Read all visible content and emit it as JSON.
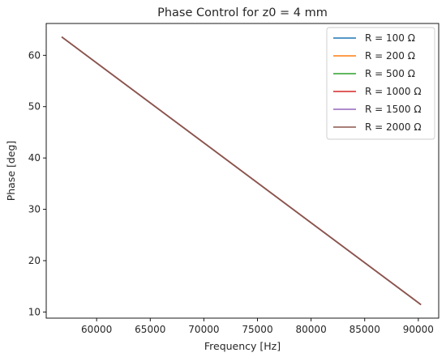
{
  "chart_data": {
    "type": "line",
    "title": "Phase Control for z0 = 4 mm",
    "xlabel": "Frequency [Hz]",
    "ylabel": "Phase [deg]",
    "xlim": [
      55300,
      91900
    ],
    "ylim": [
      8.8,
      66.2
    ],
    "xticks": [
      60000,
      65000,
      70000,
      75000,
      80000,
      85000,
      90000
    ],
    "xtick_labels": [
      "60000",
      "65000",
      "70000",
      "75000",
      "80000",
      "85000",
      "90000"
    ],
    "yticks": [
      10,
      20,
      30,
      40,
      50,
      60
    ],
    "ytick_labels": [
      "10",
      "20",
      "30",
      "40",
      "50",
      "60"
    ],
    "grid": false,
    "legend_position": "upper-right",
    "x": [
      56800,
      90200
    ],
    "series": [
      {
        "name": "R = 100 Ω",
        "color": "#1f77b4",
        "values": [
          63.5,
          11.5
        ]
      },
      {
        "name": "R = 200 Ω",
        "color": "#ff7f0e",
        "values": [
          63.5,
          11.5
        ]
      },
      {
        "name": "R = 500 Ω",
        "color": "#2ca02c",
        "values": [
          63.5,
          11.5
        ]
      },
      {
        "name": "R = 1000 Ω",
        "color": "#d62728",
        "values": [
          63.5,
          11.5
        ]
      },
      {
        "name": "R = 1500 Ω",
        "color": "#9467bd",
        "values": [
          63.5,
          11.5
        ]
      },
      {
        "name": "R = 2000 Ω",
        "color": "#8c564b",
        "values": [
          63.5,
          11.5
        ]
      }
    ]
  }
}
